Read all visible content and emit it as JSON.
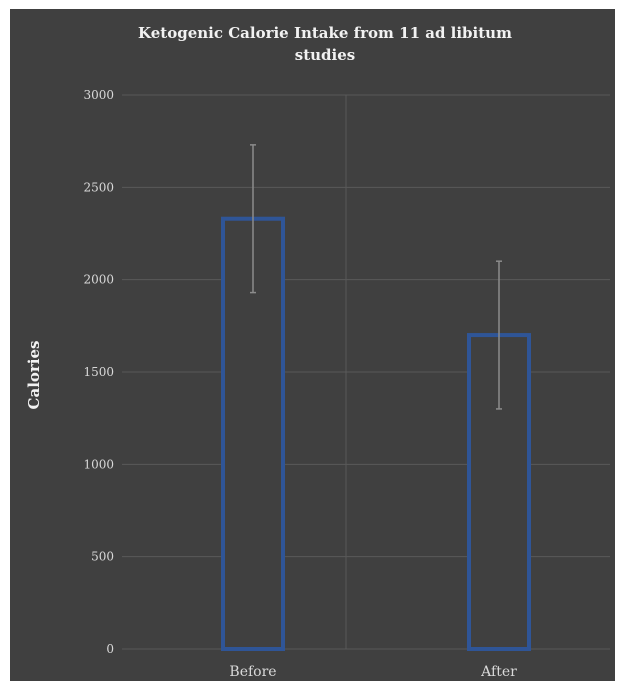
{
  "chart_data": {
    "type": "bar",
    "title": "Ketogenic Calorie Intake from 11 ad libitum studies",
    "title_lines": [
      "Ketogenic Calorie Intake from 11 ad libitum",
      "studies"
    ],
    "xlabel": "",
    "ylabel": "Calories",
    "categories": [
      "Before",
      "After"
    ],
    "values": [
      2330,
      1700
    ],
    "error": [
      400,
      400
    ],
    "ylim": [
      0,
      3000
    ],
    "yticks": [
      0,
      500,
      1000,
      1500,
      2000,
      2500,
      3000
    ],
    "grid": true,
    "legend": "none",
    "colors": {
      "background": "#404040",
      "bar_outline": "#2f5597",
      "bar_fill": "#404040",
      "error_bar": "#8c8c8c",
      "grid": "#595959",
      "text": "#d9d9d9",
      "title": "#f2f2f2"
    }
  }
}
